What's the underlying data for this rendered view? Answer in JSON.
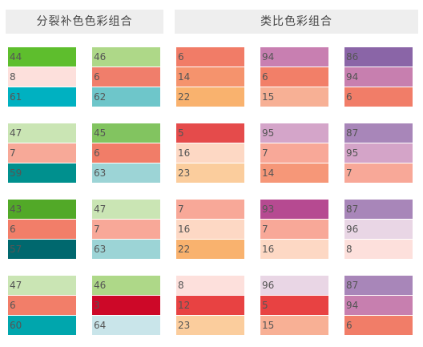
{
  "headers": {
    "left": "分裂补色色彩组合",
    "right": "类比色彩组合"
  },
  "palettes": [
    [
      [
        "#5ebe2d",
        "44"
      ],
      [
        "#fde0dc",
        "8"
      ],
      [
        "#00b1c1",
        "61"
      ]
    ],
    [
      [
        "#aed888",
        "46"
      ],
      [
        "#f07e6b",
        "6"
      ],
      [
        "#6ec6ca",
        "62"
      ]
    ],
    [
      [
        "#f17c67",
        "6"
      ],
      [
        "#f5936d",
        "14"
      ],
      [
        "#f9b26e",
        "22"
      ]
    ],
    [
      [
        "#c87fb1",
        "94"
      ],
      [
        "#f27f68",
        "6"
      ],
      [
        "#f7b095",
        "15"
      ]
    ],
    [
      [
        "#8a65a7",
        "86"
      ],
      [
        "#c77faf",
        "94"
      ],
      [
        "#f17d68",
        "6"
      ]
    ],
    [
      [
        "#cae5b4",
        "47"
      ],
      [
        "#f7a998",
        "7"
      ],
      [
        "#00908e",
        "59"
      ]
    ],
    [
      [
        "#82c460",
        "45"
      ],
      [
        "#f17d68",
        "6"
      ],
      [
        "#9cd4d6",
        "63"
      ]
    ],
    [
      [
        "#e54b4b",
        "5"
      ],
      [
        "#fdd8c4",
        "16"
      ],
      [
        "#fbcd9d",
        "23"
      ]
    ],
    [
      [
        "#d4a5c9",
        "95"
      ],
      [
        "#f8a898",
        "7"
      ],
      [
        "#f69778",
        "14"
      ]
    ],
    [
      [
        "#a886b9",
        "87"
      ],
      [
        "#d4a4c8",
        "95"
      ],
      [
        "#f8a898",
        "7"
      ]
    ],
    [
      [
        "#52a928",
        "43"
      ],
      [
        "#f27e69",
        "6"
      ],
      [
        "#00686e",
        "57"
      ]
    ],
    [
      [
        "#cae5b4",
        "47"
      ],
      [
        "#f8a898",
        "7"
      ],
      [
        "#9cd4d6",
        "63"
      ]
    ],
    [
      [
        "#f8a898",
        "7"
      ],
      [
        "#fdd8c4",
        "16"
      ],
      [
        "#f9b26e",
        "22"
      ]
    ],
    [
      [
        "#b64a91",
        "93"
      ],
      [
        "#f8a898",
        "7"
      ],
      [
        "#fdd8c4",
        "16"
      ]
    ],
    [
      [
        "#a886b9",
        "87"
      ],
      [
        "#e9d6e5",
        "96"
      ],
      [
        "#fde0dc",
        "8"
      ]
    ],
    [
      [
        "#cae5b4",
        "47"
      ],
      [
        "#f27e69",
        "6"
      ],
      [
        "#00a6ad",
        "60"
      ]
    ],
    [
      [
        "#aed888",
        "46"
      ],
      [
        "#cd0828",
        "3"
      ],
      [
        "#c9e5ea",
        "64"
      ]
    ],
    [
      [
        "#fde0dc",
        "8"
      ],
      [
        "#e84242",
        "12"
      ],
      [
        "#fbcd9d",
        "23"
      ]
    ],
    [
      [
        "#e9d6e5",
        "96"
      ],
      [
        "#e84242",
        "5"
      ],
      [
        "#f8b095",
        "15"
      ]
    ],
    [
      [
        "#a886b9",
        "87"
      ],
      [
        "#c77faf",
        "94"
      ],
      [
        "#f17d68",
        "6"
      ]
    ]
  ]
}
